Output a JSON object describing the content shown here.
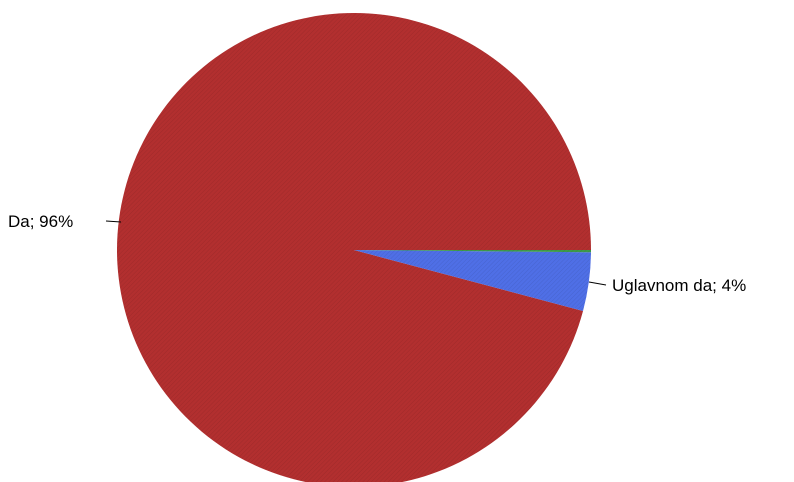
{
  "chart_data": {
    "type": "pie",
    "title": "",
    "slices": [
      {
        "label": "Da; 96%",
        "category": "Da",
        "value": 96,
        "color": "#B22F2F"
      },
      {
        "label": "Uglavnom da; 4%",
        "category": "Uglavnom da",
        "value": 4,
        "color": "#4F6FE6"
      },
      {
        "label": "",
        "category": "",
        "value": 0.15,
        "color": "#3E9A4A"
      }
    ],
    "start_angle_deg": 0,
    "direction": "clockwise",
    "legend": "none"
  }
}
